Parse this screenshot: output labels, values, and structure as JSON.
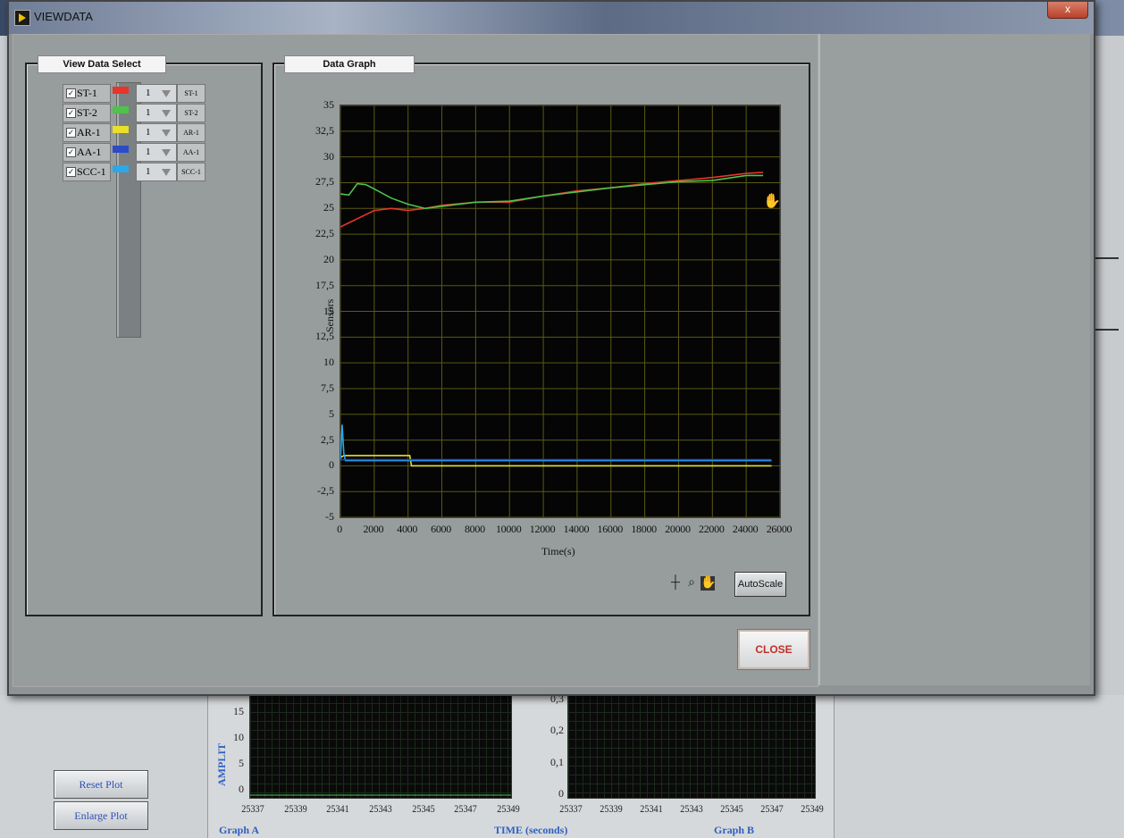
{
  "window": {
    "title": "VIEWDATA",
    "close_glyph": "x"
  },
  "view_data_select": {
    "label": "View Data Select",
    "channels": [
      {
        "name": "ST-1",
        "checked": true,
        "color": "#e8342a",
        "value": "1",
        "tag": "ST-1"
      },
      {
        "name": "ST-2",
        "checked": true,
        "color": "#4ec24a",
        "value": "1",
        "tag": "ST-2"
      },
      {
        "name": "AR-1",
        "checked": true,
        "color": "#e8e02a",
        "value": "1",
        "tag": "AR-1"
      },
      {
        "name": "AA-1",
        "checked": true,
        "color": "#2a4cc8",
        "value": "1",
        "tag": "AA-1"
      },
      {
        "name": "SCC-1",
        "checked": true,
        "color": "#2aa8e8",
        "value": "1",
        "tag": "SCC-1"
      }
    ]
  },
  "data_graph": {
    "label": "Data Graph",
    "autoscale_label": "AutoScale",
    "tools": [
      "crosshair-icon",
      "zoom-icon",
      "pan-hand-icon"
    ]
  },
  "chart_data": {
    "type": "line",
    "xlabel": "Time(s)",
    "ylabel": "Sensors",
    "xlim": [
      0,
      26000
    ],
    "ylim": [
      -5,
      35
    ],
    "x_ticks": [
      "0",
      "2000",
      "4000",
      "6000",
      "8000",
      "10000",
      "12000",
      "14000",
      "16000",
      "18000",
      "20000",
      "22000",
      "24000",
      "26000"
    ],
    "y_ticks": [
      "35",
      "32,5",
      "30",
      "27,5",
      "25",
      "22,5",
      "20",
      "17,5",
      "15",
      "12,5",
      "10",
      "7,5",
      "5",
      "2,5",
      "0",
      "-2,5",
      "-5"
    ],
    "grid": true,
    "series": [
      {
        "color": "#e8342a",
        "x": [
          0,
          500,
          1000,
          2000,
          3000,
          4000,
          5000,
          6000,
          8000,
          10000,
          12000,
          14000,
          16000,
          18000,
          20000,
          22000,
          24000,
          25000
        ],
        "y": [
          23.2,
          23.6,
          24,
          24.8,
          25,
          24.8,
          25,
          25.3,
          25.6,
          25.6,
          26.2,
          26.7,
          27,
          27.4,
          27.7,
          28,
          28.4,
          28.5
        ]
      },
      {
        "color": "#4ec24a",
        "x": [
          0,
          500,
          1000,
          1500,
          2000,
          3000,
          4000,
          5000,
          6000,
          8000,
          10000,
          12000,
          14000,
          16000,
          18000,
          20000,
          22000,
          24000,
          25000
        ],
        "y": [
          26.4,
          26.3,
          27.4,
          27.3,
          26.9,
          26,
          25.4,
          25,
          25.2,
          25.6,
          25.7,
          26.2,
          26.6,
          27,
          27.3,
          27.6,
          27.7,
          28.2,
          28.2
        ]
      },
      {
        "color": "#e8e02a",
        "x": [
          0,
          200,
          4100,
          4200,
          25500
        ],
        "y": [
          0.8,
          1,
          1,
          0,
          0
        ]
      },
      {
        "color": "#2aa8e8",
        "x": [
          0,
          100,
          200,
          300,
          4100,
          4200,
          25500
        ],
        "y": [
          0.5,
          4,
          1.2,
          0.5,
          0.5,
          0.5,
          0.5
        ]
      },
      {
        "color": "#2a4cc8",
        "x": [
          0,
          4100,
          4200,
          25500
        ],
        "y": [
          0.6,
          0.6,
          0.6,
          0.6
        ]
      }
    ]
  },
  "close_label": "CLOSE",
  "background": {
    "buttons": {
      "reset_plot": "Reset Plot",
      "enlarge_plot": "Enlarge Plot"
    },
    "graph_a": {
      "label": "Graph A",
      "y_label": "AMPLIT",
      "y_ticks": [
        "15",
        "10",
        "5",
        "0"
      ],
      "x_ticks": [
        "25337",
        "25339",
        "25341",
        "25343",
        "25345",
        "25347",
        "25349"
      ]
    },
    "graph_b": {
      "label": "Graph B",
      "y_ticks": [
        "0,3",
        "0,2",
        "0,1",
        "0"
      ],
      "x_ticks": [
        "25337",
        "25339",
        "25341",
        "25343",
        "25345",
        "25347",
        "25349"
      ]
    },
    "time_label": "TIME (seconds)"
  }
}
